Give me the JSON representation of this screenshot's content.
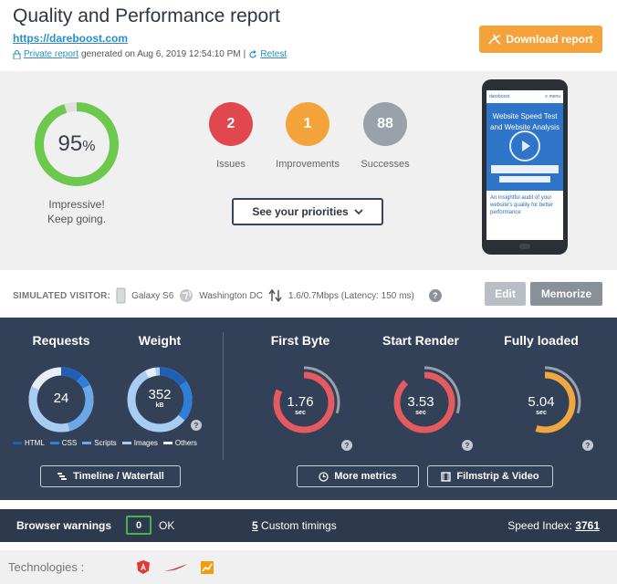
{
  "header": {
    "title": "Quality and Performance report",
    "site_url": "https://dareboost.com",
    "private_report": "Private report",
    "generated_text": "generated on Aug 6, 2019 12:54:10 PM",
    "separator": "|",
    "retest": "Retest",
    "download_label": "Download report"
  },
  "score": {
    "value": "95",
    "unit": "%",
    "fraction": 0.95,
    "message_line1": "Impressive!",
    "message_line2": "Keep going.",
    "color": "#6cc94e"
  },
  "stats": {
    "issues": {
      "count": "2",
      "label": "Issues",
      "color": "#e0474f"
    },
    "improvements": {
      "count": "1",
      "label": "Improvements",
      "color": "#f2a43a"
    },
    "successes": {
      "count": "88",
      "label": "Successes",
      "color": "#9aa1a9"
    }
  },
  "priorities_label": "See your priorities",
  "phone_preview": {
    "brand": "dareboost",
    "menu": "≡ menu",
    "hero_text": "Website Speed Test and Website Analysis",
    "footer_text": "An insightful audit of your website's quality for better performance"
  },
  "visitor": {
    "label": "SIMULATED VISITOR:",
    "device": "Galaxy S6",
    "location": "Washington DC",
    "connection": "1.6/0.7Mbps (Latency: 150 ms)",
    "help": "?",
    "edit_label": "Edit",
    "memorize_label": "Memorize"
  },
  "metrics": {
    "requests": {
      "title": "Requests",
      "value": "24"
    },
    "weight": {
      "title": "Weight",
      "value": "352",
      "unit": "kB"
    },
    "first_byte": {
      "title": "First Byte",
      "value": "1.76",
      "unit": "sec",
      "fraction": 0.82,
      "color": "#e55a5f"
    },
    "start_render": {
      "title": "Start Render",
      "value": "3.53",
      "unit": "sec",
      "fraction": 0.88,
      "color": "#e55a5f"
    },
    "fully_loaded": {
      "title": "Fully loaded",
      "value": "5.04",
      "unit": "sec",
      "fraction": 0.55,
      "color": "#f0a740"
    },
    "legend": [
      "HTML",
      "CSS",
      "Scripts",
      "Images",
      "Others"
    ],
    "legend_colors": [
      "#1f5fb8",
      "#2f7fd8",
      "#6aa8e8",
      "#a9cdf2",
      "#e8eef6"
    ],
    "q": "?",
    "timeline_label": "Timeline / Waterfall",
    "more_metrics_label": "More metrics",
    "filmstrip_label": "Filmstrip & Video"
  },
  "warnings": {
    "label": "Browser warnings",
    "count": "0",
    "status": "OK",
    "custom_count": "5",
    "custom_label": "Custom timings",
    "speed_index_label": "Speed Index:",
    "speed_index_value": "3761"
  },
  "technologies": {
    "label": "Technologies :"
  }
}
